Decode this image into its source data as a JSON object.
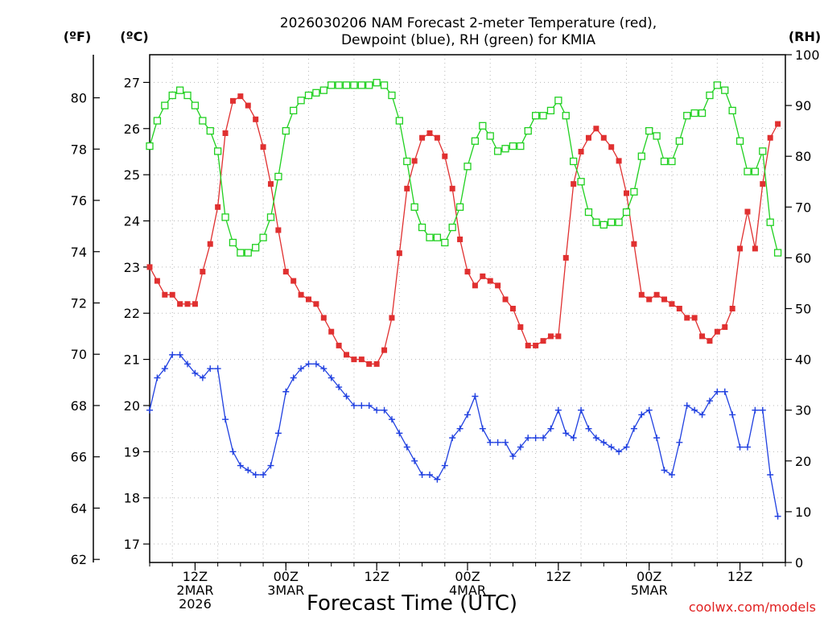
{
  "chart_data": {
    "type": "line",
    "title": [
      "2026030206 NAM Forecast 2-meter Temperature (red),",
      "Dewpoint (blue), RH (green) for KMIA"
    ],
    "xlabel": "Forecast Time (UTC)",
    "credit": "coolwx.com/models",
    "units": {
      "left_outer": "(ºF)",
      "left_inner": "(ºC)",
      "right": "(RH)"
    },
    "x_start_hour": 6,
    "x_end_hour": 90,
    "x_step_hours": 1,
    "x_ticks": [
      {
        "hour": 12,
        "lines": [
          "12Z",
          "2MAR",
          "2026"
        ]
      },
      {
        "hour": 24,
        "lines": [
          "00Z",
          "3MAR"
        ]
      },
      {
        "hour": 36,
        "lines": [
          "12Z"
        ]
      },
      {
        "hour": 48,
        "lines": [
          "00Z",
          "4MAR"
        ]
      },
      {
        "hour": 60,
        "lines": [
          "12Z"
        ]
      },
      {
        "hour": 72,
        "lines": [
          "00Z",
          "5MAR"
        ]
      },
      {
        "hour": 84,
        "lines": [
          "12Z"
        ]
      }
    ],
    "y_celsius": {
      "range": [
        16.6,
        27.6
      ],
      "ticks": [
        17,
        18,
        19,
        20,
        21,
        22,
        23,
        24,
        25,
        26,
        27
      ]
    },
    "y_fahrenheit": {
      "ticks": [
        62,
        64,
        66,
        68,
        70,
        72,
        74,
        76,
        78,
        80
      ]
    },
    "y_rh": {
      "range": [
        0,
        100
      ],
      "ticks": [
        0,
        10,
        20,
        30,
        40,
        50,
        60,
        70,
        80,
        90,
        100
      ]
    },
    "series": [
      {
        "name": "2-meter Temperature (°C)",
        "color": "#e03030",
        "marker": "filled-square",
        "values": [
          23.0,
          22.7,
          22.4,
          22.4,
          22.2,
          22.2,
          22.2,
          22.9,
          23.5,
          24.3,
          25.9,
          26.6,
          26.7,
          26.5,
          26.2,
          25.6,
          24.8,
          23.8,
          22.9,
          22.7,
          22.4,
          22.3,
          22.2,
          21.9,
          21.6,
          21.3,
          21.1,
          21.0,
          21.0,
          20.9,
          20.9,
          21.2,
          21.9,
          23.3,
          24.7,
          25.3,
          25.8,
          25.9,
          25.8,
          25.4,
          24.7,
          23.6,
          22.9,
          22.6,
          22.8,
          22.7,
          22.6,
          22.3,
          22.1,
          21.7,
          21.3,
          21.3,
          21.4,
          21.5,
          21.5,
          23.2,
          24.8,
          25.5,
          25.8,
          26.0,
          25.8,
          25.6,
          25.3,
          24.6,
          23.5,
          22.4,
          22.3,
          22.4,
          22.3,
          22.2,
          22.1,
          21.9,
          21.9,
          21.5,
          21.4,
          21.6,
          21.7,
          22.1,
          23.4,
          24.2,
          23.4,
          24.8,
          25.8,
          26.1
        ]
      },
      {
        "name": "Dewpoint (°C)",
        "color": "#2040e0",
        "marker": "plus",
        "values": [
          19.9,
          20.6,
          20.8,
          21.1,
          21.1,
          20.9,
          20.7,
          20.6,
          20.8,
          20.8,
          19.7,
          19.0,
          18.7,
          18.6,
          18.5,
          18.5,
          18.7,
          19.4,
          20.3,
          20.6,
          20.8,
          20.9,
          20.9,
          20.8,
          20.6,
          20.4,
          20.2,
          20.0,
          20.0,
          20.0,
          19.9,
          19.9,
          19.7,
          19.4,
          19.1,
          18.8,
          18.5,
          18.5,
          18.4,
          18.7,
          19.3,
          19.5,
          19.8,
          20.2,
          19.5,
          19.2,
          19.2,
          19.2,
          18.9,
          19.1,
          19.3,
          19.3,
          19.3,
          19.5,
          19.9,
          19.4,
          19.3,
          19.9,
          19.5,
          19.3,
          19.2,
          19.1,
          19.0,
          19.1,
          19.5,
          19.8,
          19.9,
          19.3,
          18.6,
          18.5,
          19.2,
          20.0,
          19.9,
          19.8,
          20.1,
          20.3,
          20.3,
          19.8,
          19.1,
          19.1,
          19.9,
          19.9,
          18.5,
          17.6
        ]
      },
      {
        "name": "RH (%)",
        "color": "#20d020",
        "marker": "open-square",
        "values": [
          82.0,
          87.0,
          90.0,
          92.0,
          93.0,
          92.0,
          90.0,
          87.0,
          85.0,
          81.0,
          68.0,
          63.0,
          61.0,
          61.0,
          62.0,
          64.0,
          68.0,
          76.0,
          85.0,
          89.0,
          91.0,
          92.0,
          92.5,
          93.0,
          94.0,
          94.0,
          94.0,
          94.0,
          94.0,
          94.0,
          94.5,
          94.0,
          92.0,
          87.0,
          79.0,
          70.0,
          66.0,
          64.0,
          64.0,
          63.0,
          66.0,
          70.0,
          78.0,
          83.0,
          86.0,
          84.0,
          81.0,
          81.5,
          82.0,
          82.0,
          85.0,
          88.0,
          88.0,
          89.0,
          91.0,
          88.0,
          79.0,
          75.0,
          69.0,
          67.0,
          66.5,
          67.0,
          67.0,
          69.0,
          73.0,
          80.0,
          85.0,
          84.0,
          79.0,
          79.0,
          83.0,
          88.0,
          88.5,
          88.5,
          92.0,
          94.0,
          93.0,
          89.0,
          83.0,
          77.0,
          77.0,
          81.0,
          67.0,
          61.0
        ]
      }
    ]
  }
}
